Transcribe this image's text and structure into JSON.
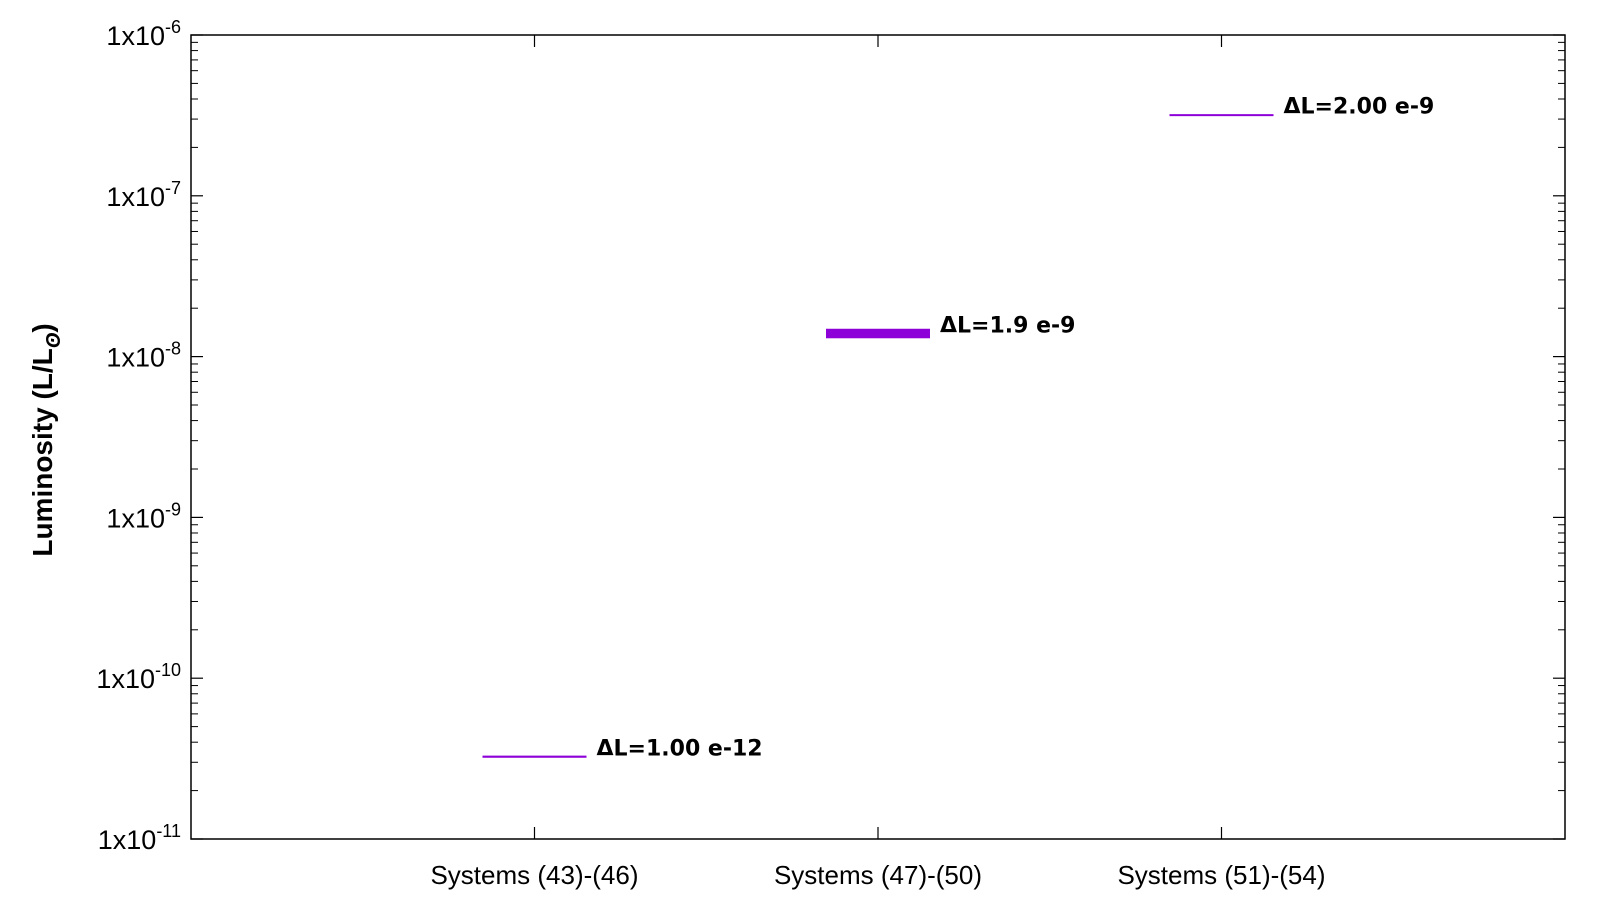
{
  "chart_data": {
    "type": "line",
    "title": "",
    "xlabel": "",
    "ylabel": "Luminosity (L/L",
    "ylabel_subscript": "ʘ",
    "ylabel_close": ")",
    "yscale": "log",
    "ylim": [
      1e-11,
      1e-06
    ],
    "categories": [
      "Systems (43)-(46)",
      "Systems (47)-(50)",
      "Systems (51)-(54)"
    ],
    "y_ticks": [
      {
        "value": 1e-11,
        "base": "1x10",
        "exp": "-11"
      },
      {
        "value": 1e-10,
        "base": "1x10",
        "exp": "-10"
      },
      {
        "value": 1e-09,
        "base": "1x10",
        "exp": "-9"
      },
      {
        "value": 1e-08,
        "base": "1x10",
        "exp": "-8"
      },
      {
        "value": 1e-07,
        "base": "1x10",
        "exp": "-7"
      },
      {
        "value": 1e-06,
        "base": "1x10",
        "exp": "-6"
      }
    ],
    "series": [
      {
        "category": "Systems (43)-(46)",
        "y_low": 3.2e-11,
        "y_high": 3.3e-11,
        "annotation": "ΔL=1.00 e-12"
      },
      {
        "category": "Systems (47)-(50)",
        "y_low": 1.3e-08,
        "y_high": 1.49e-08,
        "annotation": "ΔL=1.9 e-9"
      },
      {
        "category": "Systems (51)-(54)",
        "y_low": 3.2e-07,
        "y_high": 3.22e-07,
        "annotation": "ΔL=2.00 e-9"
      }
    ],
    "color": "#8e00d8",
    "grid": false,
    "legend": "none"
  }
}
